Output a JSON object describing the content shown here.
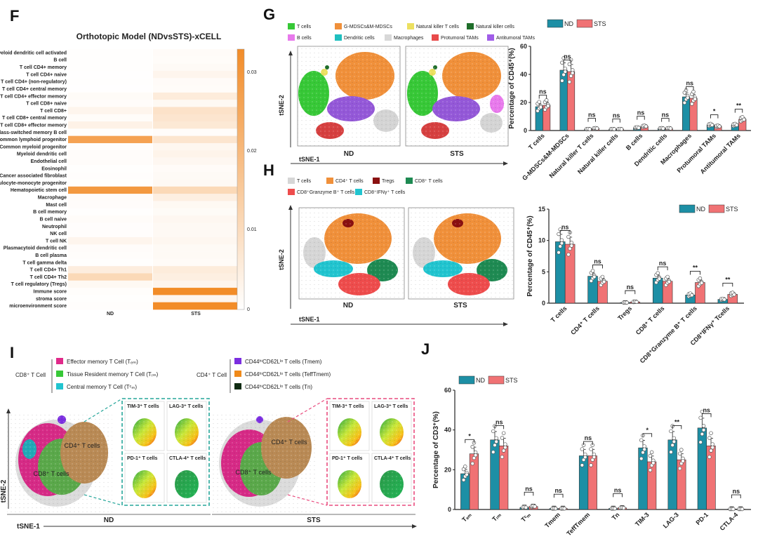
{
  "panels": {
    "F": "F",
    "G": "G",
    "H": "H",
    "I": "I",
    "J": "J"
  },
  "colors": {
    "nd": "#1d8fa5",
    "sts": "#f07274",
    "heat_max": "#f28c28",
    "heat_min": "#ffffff"
  },
  "heatmap": {
    "title": "Orthotopic Model (NDvsSTS)-xCELL",
    "columns": [
      "ND",
      "STS"
    ],
    "rows": [
      "Myeloid dendritic cell activated",
      "B cell",
      "T cell CD4+ memory",
      "T cell CD4+ naive",
      "T cell CD4+ (non-regulatory)",
      "T cell CD4+ central memory",
      "T cell CD4+ effector memory",
      "T cell CD8+ naive",
      "T cell CD8+",
      "T cell CD8+ central memory",
      "T cell CD8+ effector memory",
      "Class-switched memory B cell",
      "Common lymphoid progenitor",
      "Common myeloid progenitor",
      "Myeloid dendritic cell",
      "Endothelial cell",
      "Eosinophil",
      "Cancer associated fibroblast",
      "Granulocyte-monocyte progenitor",
      "Hematopoietic stem cell",
      "Macrophage",
      "Mast cell",
      "B cell memory",
      "B cell naive",
      "Neutrophil",
      "NK cell",
      "T cell NK",
      "Plasmacytoid dendritic cell",
      "B cell plasma",
      "T cell gamma delta",
      "T cell CD4+ Th1",
      "T cell CD4+ Th2",
      "T cell regulatory (Tregs)",
      "Immune score",
      "stroma score",
      "microenvironment score"
    ],
    "values": [
      [
        0.0004,
        0.0012
      ],
      [
        0.0003,
        0.001
      ],
      [
        0.0004,
        0.0015
      ],
      [
        0.0002,
        0.003
      ],
      [
        0.0003,
        0.0012
      ],
      [
        0.0002,
        0.001
      ],
      [
        0.0014,
        0.006
      ],
      [
        0.0008,
        0.002
      ],
      [
        0.003,
        0.009
      ],
      [
        0.001,
        0.008
      ],
      [
        0.004,
        0.007
      ],
      [
        0.0003,
        0.0009
      ],
      [
        0.029,
        0.008
      ],
      [
        0.0006,
        0.0025
      ],
      [
        0.0008,
        0.0035
      ],
      [
        0.0008,
        0.0024
      ],
      [
        0.0004,
        0.0012
      ],
      [
        0.0005,
        0.0015
      ],
      [
        0.0004,
        0.0018
      ],
      [
        0.032,
        0.012
      ],
      [
        0.001,
        0.005
      ],
      [
        0.0008,
        0.002
      ],
      [
        0.0004,
        0.0014
      ],
      [
        0.001,
        0.0024
      ],
      [
        0.0005,
        0.0018
      ],
      [
        0.0005,
        0.0018
      ],
      [
        0.003,
        0.0025
      ],
      [
        0.0008,
        0.0017
      ],
      [
        0.0006,
        0.0016
      ],
      [
        0.0004,
        0.0013
      ],
      [
        0.0055,
        0.006
      ],
      [
        0.012,
        0.005
      ],
      [
        0.002,
        0.003
      ],
      [
        0.0006,
        0.036
      ],
      [
        0.0003,
        0.003
      ],
      [
        0.0005,
        0.036
      ]
    ],
    "colorbar_ticks": [
      "0.03",
      "0.02",
      "0.01",
      "0"
    ]
  },
  "panel_g": {
    "legend": [
      "T cells",
      "G-MDSCs&M-MDSCs",
      "Natural killer T cells",
      "Natural killer cells",
      "B cells",
      "Dendritic cells",
      "Macrophages",
      "Protumoral TAMs",
      "Antitumoral TAMs"
    ],
    "legend_colors": [
      "#37c837",
      "#f0903a",
      "#ece060",
      "#1f6e2a",
      "#e879ec",
      "#1fbfbf",
      "#d8d8d8",
      "#e84a4a",
      "#a05de8"
    ],
    "tsne_labels": [
      "ND",
      "STS"
    ],
    "axis_y": "tSNE-2",
    "axis_x": "tSNE-1"
  },
  "panel_h": {
    "legend": [
      "T cells",
      "CD4⁺ T cells",
      "Tregs",
      "CD8⁺ T cells",
      "CD8⁺Granzyme B⁺ T cells",
      "CD8⁺IFNγ⁺ T cells"
    ],
    "legend_colors": [
      "#d6d6d6",
      "#f0903a",
      "#8a1010",
      "#1e8a52",
      "#ee4c4c",
      "#21c4cf"
    ],
    "tsne_labels": [
      "ND",
      "STS"
    ],
    "axis_y": "tSNE-2",
    "axis_x": "tSNE-1"
  },
  "panel_i": {
    "group_cd8": "CD8⁺ T Cell",
    "group_cd4": "CD4⁺ T Cell",
    "legend_cd8": [
      "Effector memory T Cell (Tₑₘ)",
      "Tissue Resident memory T Cell (Tᵣₘ)",
      "Central memory T Cell (Tᶜₘ)"
    ],
    "legend_cd8_colors": [
      "#e02a8a",
      "#37c837",
      "#21c4cf"
    ],
    "legend_cd4": [
      "CD44ʰⁱCD62Lˡᵒ T cells (Tmem)",
      "CD44ʰⁱCD62Lˡᵒ T cells (TeffTmem)",
      "CD44ʰⁱCD62Lˡᵒ T cells (Tn)"
    ],
    "legend_cd4_colors": [
      "#7b2ee0",
      "#f08a1a",
      "#0f2b12"
    ],
    "cluster_cd4": "CD4⁺ T cells",
    "cluster_cd8": "CD8⁺ T cells",
    "insets": [
      "TIM-3⁺ T cells",
      "LAG-3⁺ T cells",
      "PD-1⁺ T cells",
      "CTLA-4⁺ T cells"
    ],
    "tsne_labels": [
      "ND",
      "STS"
    ],
    "axis_y": "tSNE-2",
    "axis_x": "tSNE-1"
  },
  "chart_data": [
    {
      "id": "G",
      "type": "bar",
      "ylabel": "Percentage of CD45⁺(%)",
      "ylim": [
        0,
        60
      ],
      "yticks": [
        0,
        20,
        40,
        60
      ],
      "categories": [
        "T cells",
        "G-MDSCs&M-MDSCs",
        "Natural killer T cells",
        "Natural killer cells",
        "B cells",
        "Dendritic cells",
        "Macrophages",
        "Protumoral TAMs",
        "Antitumoral TAMs"
      ],
      "series": [
        {
          "name": "ND",
          "values": [
            17,
            43,
            1,
            1,
            2,
            1.5,
            24,
            4,
            4
          ]
        },
        {
          "name": "STS",
          "values": [
            18,
            42,
            1.5,
            1,
            3,
            1.5,
            23,
            3,
            8
          ]
        }
      ],
      "significance": [
        "ns",
        "ns",
        "ns",
        "ns",
        "ns",
        "ns",
        "ns",
        "*",
        "**"
      ]
    },
    {
      "id": "H",
      "type": "bar",
      "ylabel": "Percentage of CD45⁺(%)",
      "ylim": [
        0,
        15
      ],
      "yticks": [
        0,
        5,
        10,
        15
      ],
      "categories": [
        "T cells",
        "CD4⁺ T cells",
        "Tregs",
        "CD8⁺ T cells",
        "CD8⁺Granzyme B⁺ T cells",
        "CD8⁺IFNγ⁺ Tcells"
      ],
      "series": [
        {
          "name": "ND",
          "values": [
            9.8,
            4.3,
            0.1,
            4.0,
            1.3,
            0.6
          ]
        },
        {
          "name": "STS",
          "values": [
            9.4,
            3.5,
            0.2,
            3.5,
            3.3,
            1.4
          ]
        }
      ],
      "significance": [
        "ns",
        "ns",
        "ns",
        "ns",
        "**",
        "**"
      ]
    },
    {
      "id": "J",
      "type": "bar",
      "ylabel": "Percentage of CD3⁺(%)",
      "ylim": [
        0,
        60
      ],
      "yticks": [
        0,
        20,
        40,
        60
      ],
      "categories": [
        "Tₑₘ",
        "Tᵣₘ",
        "Tᶜₘ",
        "Tmem",
        "TeffTmem",
        "Tn",
        "TIM-3",
        "LAG-3",
        "PD-1",
        "CTLA-4"
      ],
      "series": [
        {
          "name": "ND",
          "values": [
            18,
            35,
            1,
            0.5,
            27,
            0.5,
            31,
            35,
            41,
            0.2
          ]
        },
        {
          "name": "STS",
          "values": [
            28,
            32,
            1.5,
            0.5,
            27,
            0.8,
            24,
            25,
            32,
            0.2
          ]
        }
      ],
      "significance": [
        "*",
        "ns",
        "ns",
        "ns",
        "ns",
        "ns",
        "*",
        "**",
        "ns",
        "ns"
      ]
    }
  ]
}
